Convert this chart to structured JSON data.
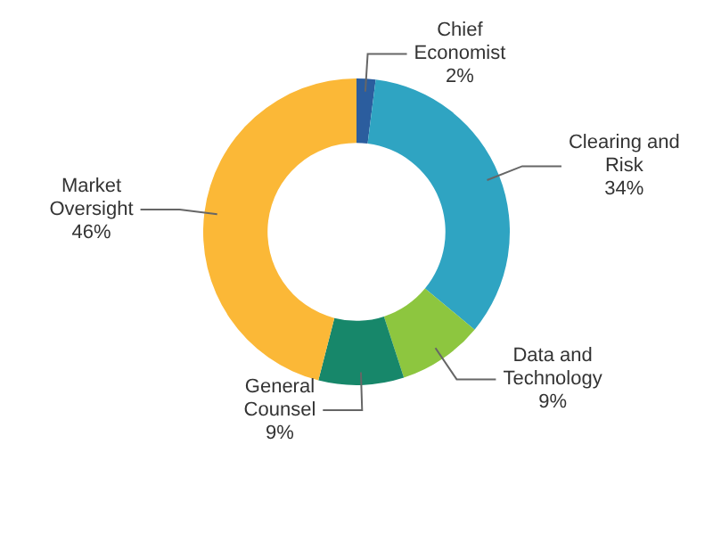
{
  "chart_data": {
    "type": "donut",
    "categories": [
      "Chief Economist",
      "Clearing and Risk",
      "Data and Technology",
      "General Counsel",
      "Market Oversight"
    ],
    "values": [
      2,
      34,
      9,
      9,
      46
    ],
    "value_labels": [
      "2%",
      "34%",
      "9%",
      "9%",
      "46%"
    ],
    "colors": [
      "#2b5d9e",
      "#2fa4c2",
      "#8dc63f",
      "#17876a",
      "#fbb837"
    ],
    "legend": false
  }
}
